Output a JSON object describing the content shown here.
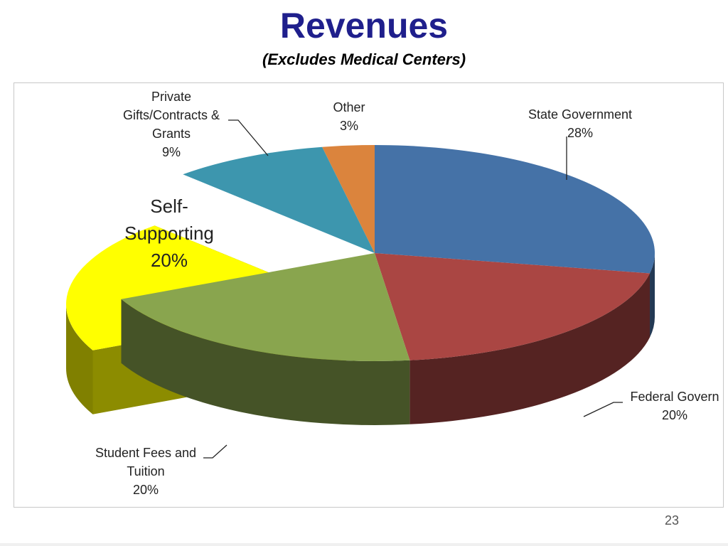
{
  "slide": {
    "title": "Revenues",
    "subtitle": "(Excludes Medical Centers)",
    "page_number": "23"
  },
  "chart_data": {
    "type": "pie",
    "title": "",
    "exploded_slice": "Self-Supporting",
    "slices": [
      {
        "label": "State Government",
        "label_lines": [
          "State Government",
          "28%"
        ],
        "value": 28,
        "color": "#4572a7"
      },
      {
        "label": "Federal Government",
        "label_lines": [
          "Federal Govern",
          "20%"
        ],
        "value": 20,
        "color": "#aa4643"
      },
      {
        "label": "Student Fees and Tuition",
        "label_lines": [
          "Student Fees and",
          "Tuition",
          "20%"
        ],
        "value": 20,
        "color": "#89a54e"
      },
      {
        "label": "Self-Supporting",
        "label_lines": [
          "Self-",
          "Supporting",
          "20%"
        ],
        "value": 20,
        "color": "#ffff00"
      },
      {
        "label": "Private Gifts/Contracts & Grants",
        "label_lines": [
          "Private",
          "Gifts/Contracts &",
          "Grants",
          "9%"
        ],
        "value": 9,
        "color": "#3d96ae"
      },
      {
        "label": "Other",
        "label_lines": [
          "Other",
          "3%"
        ],
        "value": 3,
        "color": "#db843d"
      }
    ]
  }
}
